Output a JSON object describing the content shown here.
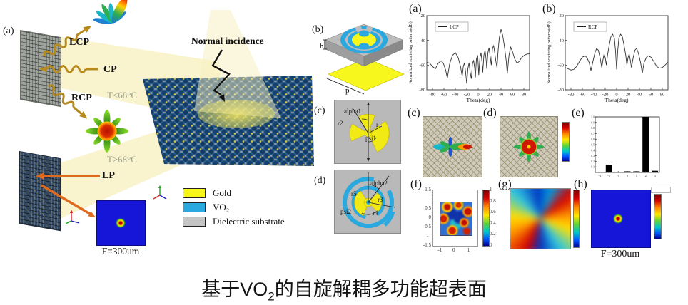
{
  "caption": {
    "part1": "基于VO",
    "sub": "2",
    "part2": "的自旋解耦多功能超表面"
  },
  "left_scene": {
    "panel_label": "(a)",
    "lcp": "LCP",
    "cp": "CP",
    "rcp": "RCP",
    "lp": "LP",
    "t_low": "T<68°C",
    "t_high": "T≥68°C",
    "normal_incidence": "Normal incidence",
    "focal_label": "F=300um",
    "legend": [
      {
        "label": "Gold",
        "color": "#f6f618"
      },
      {
        "label": "VO₂",
        "color": "#29a9e0"
      },
      {
        "label": "Dielectric substrate",
        "color": "#c4c4c4"
      }
    ]
  },
  "unit_cells": {
    "b": {
      "label": "(b)",
      "h": "h",
      "p": "p"
    },
    "c": {
      "label": "(c)",
      "alpha": "alpha1",
      "r_outer": "r2",
      "r_inner": "r1",
      "psi": "psi1"
    },
    "d": {
      "label": "(d)",
      "alpha": "alpha2",
      "r5": "r5",
      "r3": "r3",
      "psi": "psi2",
      "r4": "r4"
    }
  },
  "right_panels": {
    "a": "(a)",
    "b": "(b)",
    "c": "(c)",
    "d": "(d)",
    "e": "(e)",
    "f": "(f)",
    "g": "(g)",
    "h": "(h)",
    "h_focal_label": "F=300um"
  },
  "chart_data": [
    {
      "id": "plot-lcp",
      "type": "line",
      "panel": "(a)",
      "legend": "LCP",
      "xlabel": "Theta(deg)",
      "ylabel": "Normalized scattering patterns(dB)",
      "xlim": [
        -90,
        90
      ],
      "ylim": [
        -80,
        -20
      ],
      "xticks": [
        -80,
        -60,
        -40,
        -20,
        0,
        20,
        40,
        60,
        80
      ],
      "yticks": [
        -20,
        -40,
        -60,
        -80
      ],
      "series": [
        {
          "name": "LCP",
          "x": [
            -90,
            -85,
            -79,
            -75,
            -70,
            -65,
            -61,
            -57,
            -54,
            -50,
            -45,
            -40,
            -35,
            -31,
            -28,
            -26,
            -24,
            -22,
            -20,
            -18,
            -16,
            -14,
            -12,
            -10,
            -8,
            -6,
            -5,
            -3,
            -1,
            0,
            1,
            3,
            5,
            7,
            8,
            10,
            12,
            14,
            15,
            17,
            19,
            21,
            23,
            25,
            27,
            29,
            31,
            33,
            35,
            37,
            40,
            43,
            46,
            49,
            51,
            54,
            57,
            60,
            64,
            68,
            72,
            76,
            81,
            86,
            90
          ],
          "y": [
            -57.5,
            -58.5,
            -61.5,
            -63,
            -58.5,
            -56.5,
            -58.5,
            -64,
            -70.5,
            -59,
            -52,
            -50,
            -54,
            -61,
            -69,
            -61,
            -58,
            -66,
            -75,
            -63,
            -58,
            -66,
            -71,
            -59,
            -56,
            -63,
            -70,
            -55,
            -52,
            -59,
            -68,
            -54,
            -50,
            -59,
            -66,
            -52,
            -48,
            -56,
            -63,
            -50,
            -46,
            -53,
            -60,
            -47,
            -44,
            -50,
            -57,
            -62,
            -48,
            -38,
            -31,
            -36,
            -45,
            -56,
            -67,
            -52,
            -45.5,
            -49,
            -55,
            -58.5,
            -57,
            -54,
            -52,
            -51,
            -51
          ]
        }
      ]
    },
    {
      "id": "plot-rcp",
      "type": "line",
      "panel": "(b)",
      "legend": "RCP",
      "xlabel": "Theta(deg)",
      "ylabel": "Normalized scattering patterns(dB)",
      "xlim": [
        -90,
        90
      ],
      "ylim": [
        -80,
        -20
      ],
      "xticks": [
        -80,
        -60,
        -40,
        -20,
        0,
        20,
        40,
        60,
        80
      ],
      "yticks": [
        -20,
        -40,
        -60,
        -80
      ],
      "series": [
        {
          "name": "RCP",
          "x": [
            -90,
            -85,
            -80,
            -75,
            -70,
            -65,
            -60,
            -55,
            -52,
            -48,
            -45,
            -42,
            -38,
            -35,
            -32,
            -29,
            -26,
            -24,
            -22,
            -20,
            -18,
            -16,
            -13,
            -10,
            -7,
            -4,
            -2,
            0,
            2,
            4,
            7,
            10,
            13,
            16,
            18,
            20,
            22,
            24,
            26,
            29,
            32,
            35,
            38,
            42,
            45,
            48,
            52,
            55,
            60,
            65,
            70,
            75,
            80,
            85,
            90
          ],
          "y": [
            -62,
            -63,
            -64,
            -63.5,
            -61,
            -57,
            -53.5,
            -52.5,
            -54,
            -58,
            -64.5,
            -58,
            -50,
            -46.5,
            -48,
            -54,
            -62,
            -56,
            -51,
            -54,
            -60,
            -52,
            -44,
            -37,
            -35,
            -38,
            -48,
            -63.5,
            -48,
            -38,
            -35,
            -37,
            -44,
            -52,
            -60,
            -54,
            -51,
            -56,
            -62,
            -54,
            -48,
            -46.5,
            -50,
            -58,
            -66.5,
            -58,
            -54,
            -52.5,
            -53.5,
            -57,
            -61,
            -62.5,
            -62,
            -60,
            -57.5
          ]
        }
      ]
    },
    {
      "id": "plot-orders",
      "type": "bar",
      "panel": "(e)",
      "categories": [
        "-3",
        "-2",
        "-1",
        "0",
        "1",
        "2",
        "3"
      ],
      "values": [
        0.005,
        0.14,
        0.005,
        0.02,
        0.02,
        1.0,
        0.03
      ],
      "ylim": [
        0,
        1
      ],
      "yticks": [
        0.1,
        0.2,
        0.3,
        0.4,
        0.5,
        0.6,
        0.7,
        0.8,
        0.9,
        1.0
      ],
      "bar_color": "#000000"
    },
    {
      "id": "f-map",
      "type": "heatmap",
      "panel": "(f)",
      "xticks": [
        -1,
        0,
        1
      ],
      "yticks": [
        1.5,
        1,
        0.5,
        0,
        -0.5,
        -1,
        -1.5
      ],
      "colorbar_ticks": [
        1,
        0.8,
        0.6,
        0.4,
        0.2,
        0
      ],
      "description": "normalized intensity map, blue background with red hot spots"
    },
    {
      "id": "g-map",
      "type": "heatmap",
      "panel": "(g)",
      "description": "spiral phase distribution map, jet colormap"
    },
    {
      "id": "h-map",
      "type": "heatmap",
      "panel": "(h)",
      "label": "F=300um",
      "description": "focal spot on blue background, jet colormap"
    }
  ]
}
